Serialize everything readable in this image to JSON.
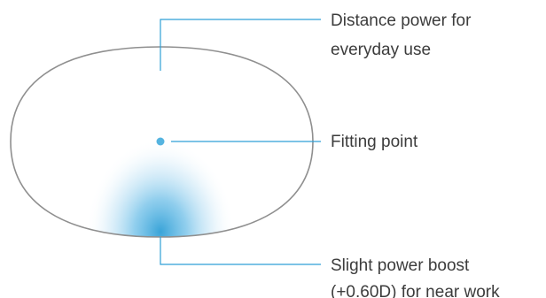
{
  "colors": {
    "background": "#ffffff",
    "lens_outline": "#8f8f8f",
    "accent_blue": "#2f9fd6",
    "fitting_point": "#55b4e0",
    "text": "#3c3c3c"
  },
  "callouts": {
    "distance": {
      "line1": "Distance power for",
      "line2": "everyday use"
    },
    "fitting": {
      "label": "Fitting point"
    },
    "near": {
      "line1": "Slight power boost",
      "line2": "(+0.60D) for near work"
    }
  }
}
